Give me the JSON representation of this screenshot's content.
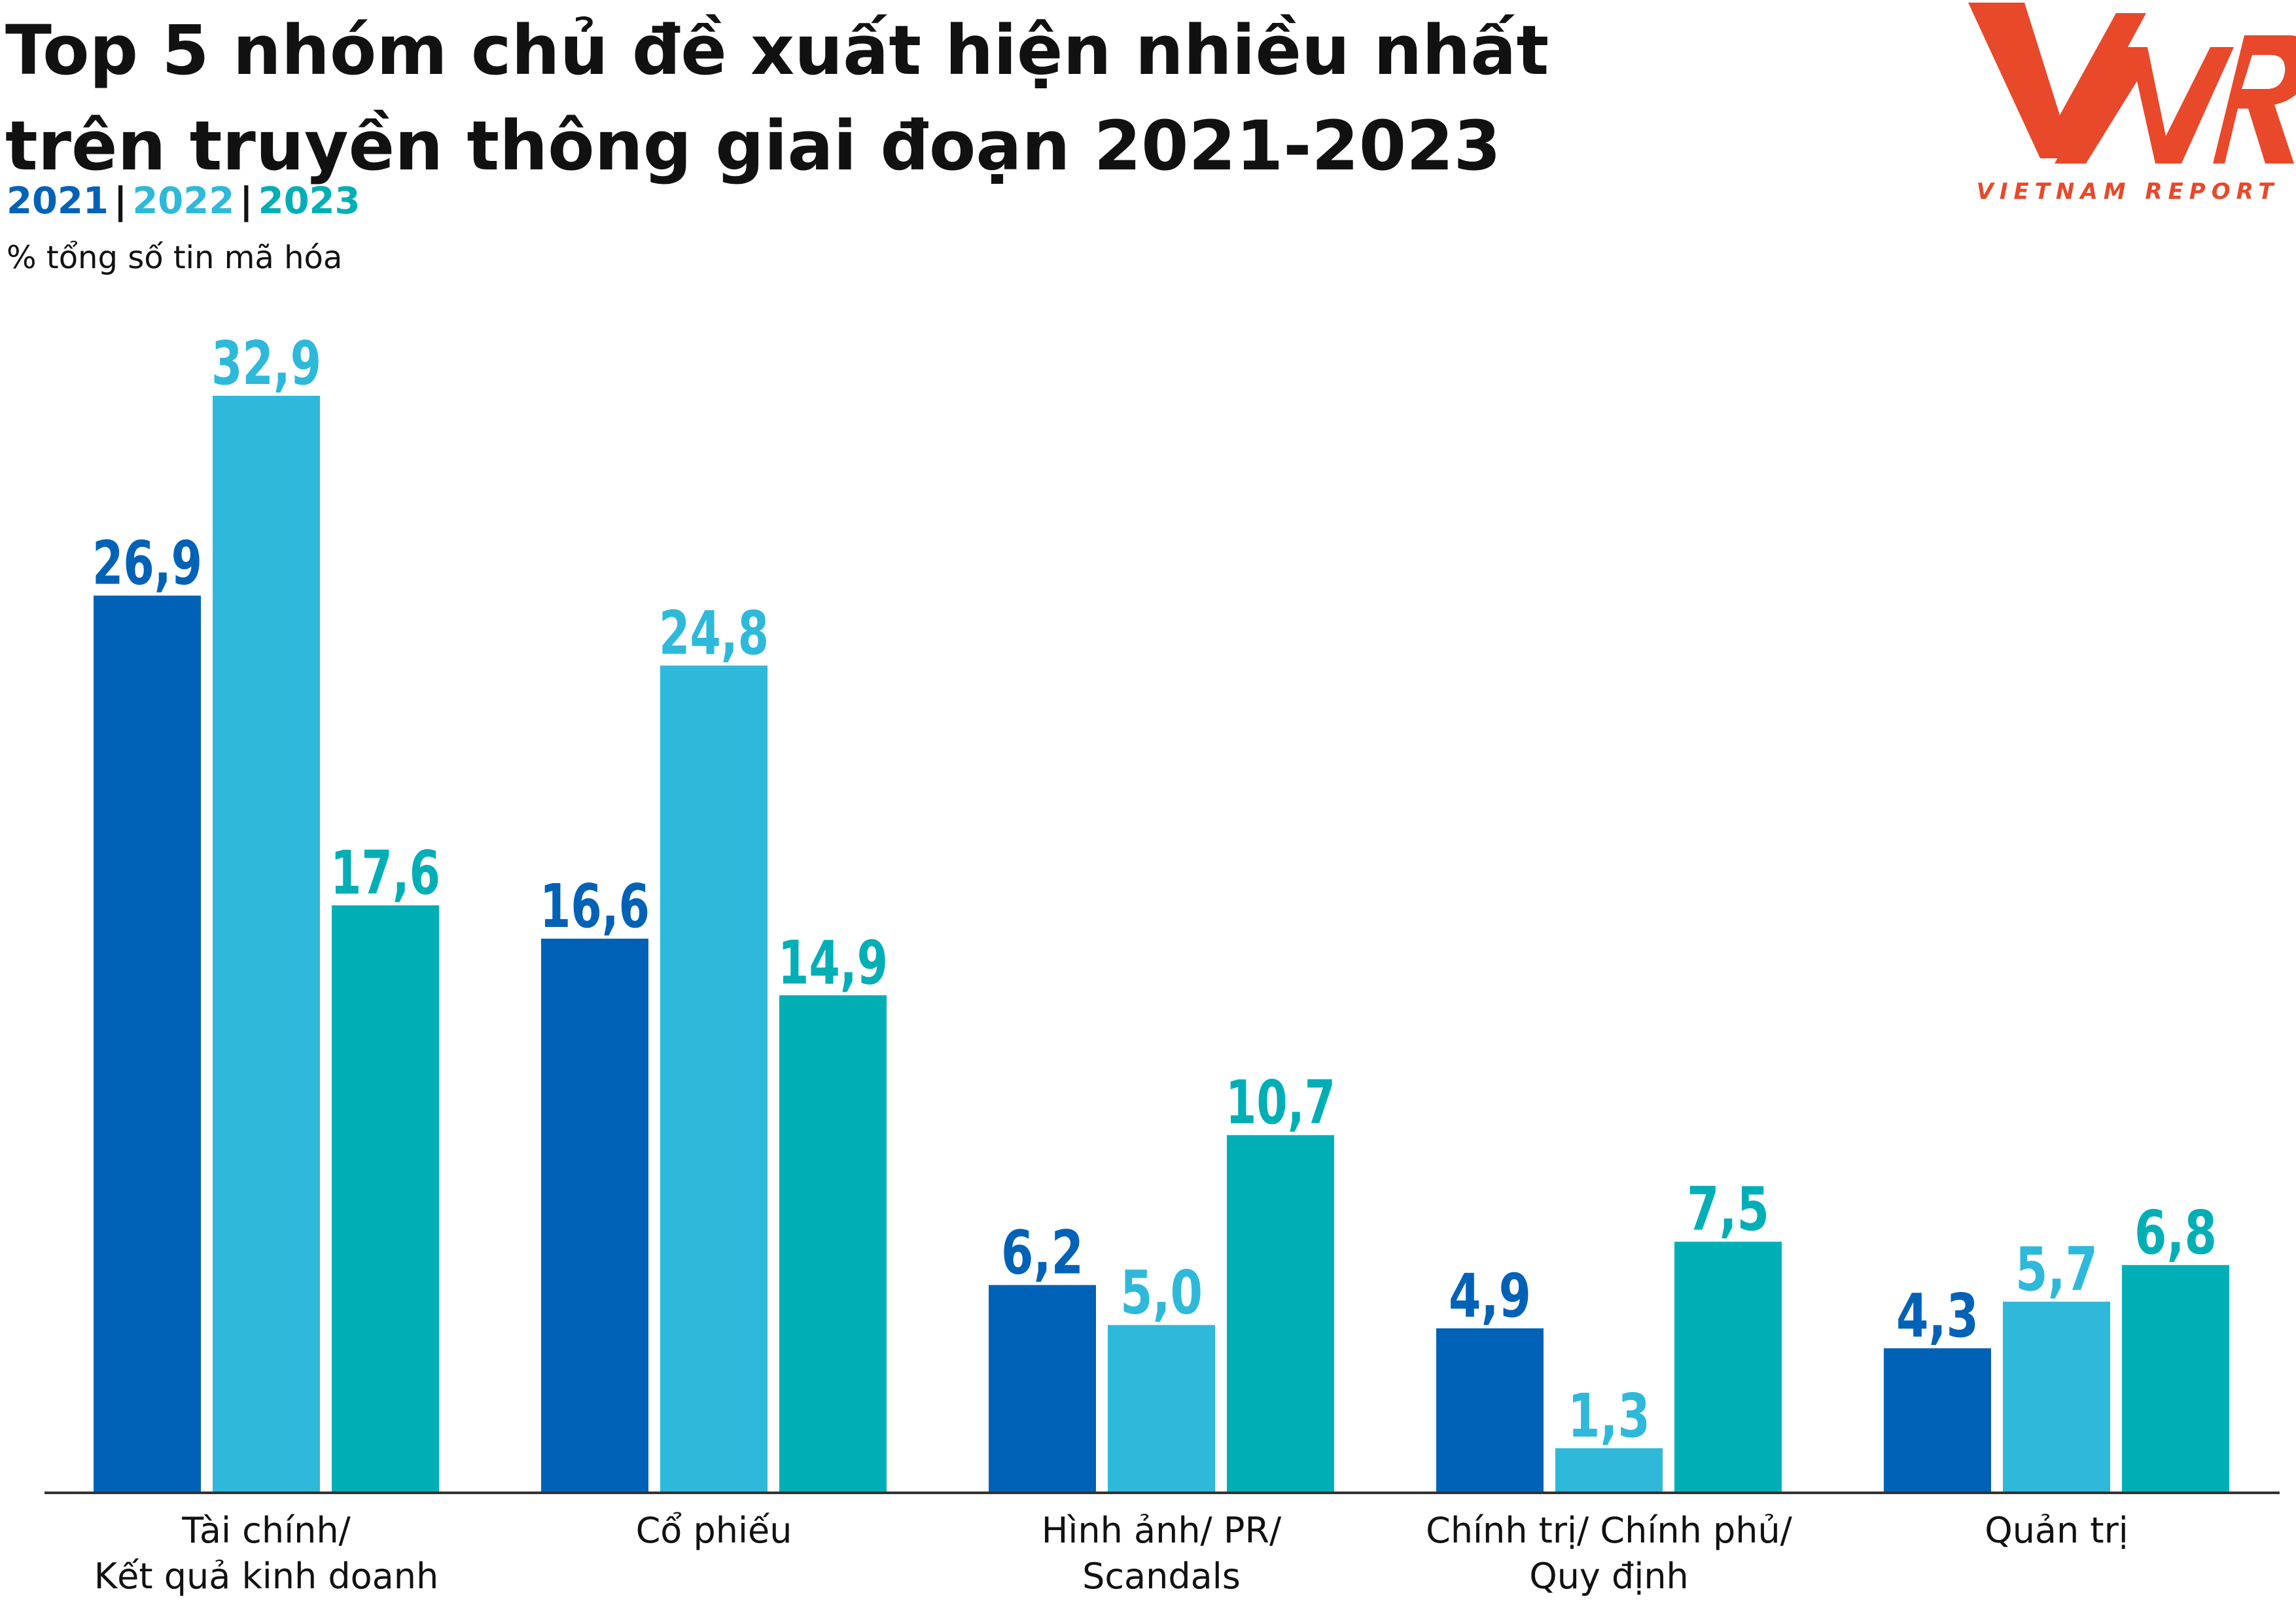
{
  "title": [
    "Top 5 nhóm chủ đề xuất hiện nhiều nhất",
    "trên truyền thông giai đoạn 2021-2023"
  ],
  "legend": [
    {
      "name": "2021",
      "color": "#0062B7"
    },
    {
      "name": "2022",
      "color": "#2EB9DA"
    },
    {
      "name": "2023",
      "color": "#00AFB6"
    }
  ],
  "legend_separator": "|",
  "subtitle": "% tổng số tin mã hóa",
  "logo": {
    "text": "VNR",
    "tagline": "VIETNAM REPORT",
    "color": "#E8492A"
  },
  "chart_data": {
    "type": "bar",
    "categories": [
      [
        "Tài chính/",
        "Kết quả kinh doanh"
      ],
      [
        "Cổ phiếu"
      ],
      [
        "Hình ảnh/ PR/",
        "Scandals"
      ],
      [
        "Chính trị/ Chính phủ/",
        "Quy định"
      ],
      [
        "Quản trị"
      ]
    ],
    "series": [
      {
        "name": "2021",
        "color": "#0062B7",
        "values": [
          26.9,
          16.6,
          6.2,
          4.9,
          4.3
        ],
        "labels": [
          "26,9",
          "16,6",
          "6,2",
          "4,9",
          "4,3"
        ]
      },
      {
        "name": "2022",
        "color": "#2EB9DA",
        "values": [
          32.9,
          24.8,
          5.0,
          1.3,
          5.7
        ],
        "labels": [
          "32,9",
          "24,8",
          "5,0",
          "1,3",
          "5,7"
        ]
      },
      {
        "name": "2023",
        "color": "#00AFB6",
        "values": [
          17.6,
          14.9,
          10.7,
          7.5,
          6.8
        ],
        "labels": [
          "17,6",
          "14,9",
          "10,7",
          "7,5",
          "6,8"
        ]
      }
    ],
    "ylim": [
      0,
      32.9
    ],
    "grid": false,
    "legend_position": "top-left"
  }
}
